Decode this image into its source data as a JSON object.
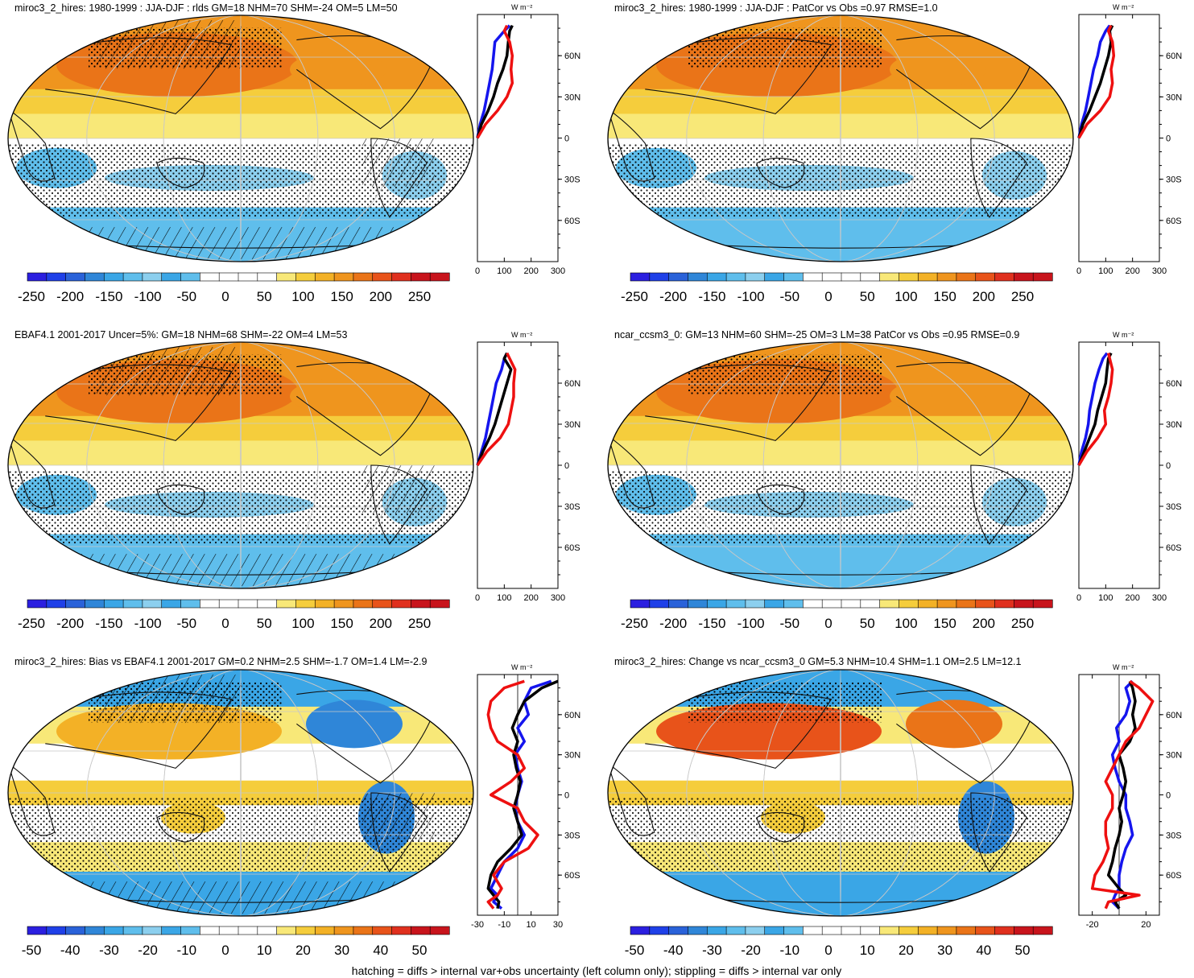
{
  "footer": "hatching = diffs > internal var+obs uncertainty (left column only); stippling = diffs > internal var only",
  "colors": {
    "seq_neg": [
      "#2b1fe0",
      "#1f40e8",
      "#2a62d9",
      "#2f86d8",
      "#3aa6e6",
      "#5fbeec",
      "#8ccfee"
    ],
    "seq_pos": [
      "#f8e878",
      "#f5cd3c",
      "#f3b126",
      "#ef951e",
      "#ea7418",
      "#e8531a",
      "#e0301e",
      "#c8141c"
    ],
    "white": "#ffffff",
    "profile_blue": "#1515ee",
    "profile_black": "#000000",
    "profile_red": "#ee1010"
  },
  "chart_data": [
    {
      "type": "heatmap",
      "panel": "top-left",
      "title": "miroc3_2_hires: 1980-1999 : JJA-DJF : rlds GM=18 NHM=70 SHM=-24 OM=5 LM=50",
      "colorbar_labels": [
        "-250",
        "-200",
        "-150",
        "-100",
        "-50",
        "0",
        "50",
        "100",
        "150",
        "200",
        "250"
      ],
      "profile": {
        "unit": "W m⁻²",
        "xticks": [
          "0",
          "100",
          "200",
          "300"
        ],
        "xlim": [
          0,
          300
        ],
        "lat_labels": [
          "60N",
          "30N",
          "0",
          "30S",
          "60S"
        ],
        "series": [
          {
            "name": "blue",
            "lat": [
              0,
              10,
              20,
              30,
              40,
              50,
              60,
              70,
              78,
              82
            ],
            "values": [
              0,
              10,
              25,
              35,
              45,
              55,
              60,
              65,
              100,
              120
            ]
          },
          {
            "name": "black",
            "lat": [
              0,
              10,
              20,
              30,
              40,
              50,
              60,
              70,
              78,
              82
            ],
            "values": [
              0,
              15,
              40,
              60,
              75,
              95,
              110,
              115,
              120,
              130
            ]
          },
          {
            "name": "red",
            "lat": [
              0,
              10,
              20,
              30,
              40,
              50,
              60,
              70,
              78,
              82
            ],
            "values": [
              0,
              30,
              75,
              110,
              130,
              125,
              130,
              120,
              100,
              110
            ]
          }
        ]
      }
    },
    {
      "type": "heatmap",
      "panel": "top-right",
      "title": "miroc3_2_hires: 1980-1999 : JJA-DJF : PatCor vs Obs =0.97 RMSE=1.0",
      "colorbar_labels": [
        "-250",
        "-200",
        "-150",
        "-100",
        "-50",
        "0",
        "50",
        "100",
        "150",
        "200",
        "250"
      ],
      "profile": {
        "unit": "W m⁻²",
        "xticks": [
          "0",
          "100",
          "200",
          "300"
        ],
        "xlim": [
          0,
          300
        ],
        "lat_labels": [
          "60N",
          "30N",
          "0",
          "30S",
          "60S"
        ],
        "series": [
          {
            "name": "blue",
            "lat": [
              0,
              10,
              20,
              30,
              40,
              50,
              60,
              70,
              78,
              82
            ],
            "values": [
              0,
              10,
              25,
              35,
              45,
              55,
              70,
              80,
              100,
              115
            ]
          },
          {
            "name": "black",
            "lat": [
              0,
              10,
              20,
              30,
              40,
              50,
              60,
              70,
              78,
              82
            ],
            "values": [
              0,
              15,
              40,
              60,
              80,
              95,
              110,
              120,
              115,
              125
            ]
          },
          {
            "name": "red",
            "lat": [
              0,
              10,
              20,
              30,
              40,
              50,
              60,
              70,
              78,
              82
            ],
            "values": [
              0,
              30,
              80,
              115,
              125,
              120,
              130,
              125,
              110,
              120
            ]
          }
        ]
      }
    },
    {
      "type": "heatmap",
      "panel": "middle-left",
      "title": "EBAF4.1 2001-2017 Uncer=5%: GM=18 NHM=68 SHM=-22 OM=4 LM=53",
      "colorbar_labels": [
        "-250",
        "-200",
        "-150",
        "-100",
        "-50",
        "0",
        "50",
        "100",
        "150",
        "200",
        "250"
      ],
      "profile": {
        "unit": "W m⁻²",
        "xticks": [
          "0",
          "100",
          "200",
          "300"
        ],
        "xlim": [
          0,
          300
        ],
        "lat_labels": [
          "60N",
          "30N",
          "0",
          "30S",
          "60S"
        ],
        "series": [
          {
            "name": "blue",
            "lat": [
              0,
              10,
              20,
              30,
              40,
              50,
              60,
              70,
              78,
              82
            ],
            "values": [
              0,
              15,
              30,
              40,
              50,
              60,
              70,
              90,
              100,
              110
            ]
          },
          {
            "name": "black",
            "lat": [
              0,
              10,
              20,
              30,
              40,
              50,
              60,
              70,
              78,
              82
            ],
            "values": [
              0,
              20,
              45,
              65,
              80,
              95,
              110,
              125,
              100,
              110
            ]
          },
          {
            "name": "red",
            "lat": [
              0,
              10,
              20,
              30,
              40,
              50,
              60,
              70,
              78,
              82
            ],
            "values": [
              0,
              35,
              85,
              115,
              125,
              135,
              135,
              140,
              120,
              110
            ]
          }
        ]
      }
    },
    {
      "type": "heatmap",
      "panel": "middle-right",
      "title": "ncar_ccsm3_0: GM=13 NHM=60 SHM=-25 OM=3 LM=38 PatCor vs Obs =0.95 RMSE=0.9",
      "colorbar_labels": [
        "-250",
        "-200",
        "-150",
        "-100",
        "-50",
        "0",
        "50",
        "100",
        "150",
        "200",
        "250"
      ],
      "profile": {
        "unit": "W m⁻²",
        "xticks": [
          "0",
          "100",
          "200",
          "300"
        ],
        "xlim": [
          0,
          300
        ],
        "lat_labels": [
          "60N",
          "30N",
          "0",
          "30S",
          "60S"
        ],
        "series": [
          {
            "name": "blue",
            "lat": [
              0,
              10,
              20,
              30,
              40,
              50,
              60,
              70,
              78,
              82
            ],
            "values": [
              0,
              10,
              25,
              35,
              40,
              50,
              60,
              75,
              90,
              105
            ]
          },
          {
            "name": "black",
            "lat": [
              0,
              10,
              20,
              30,
              40,
              50,
              60,
              70,
              78,
              82
            ],
            "values": [
              0,
              20,
              40,
              60,
              70,
              85,
              100,
              105,
              110,
              120
            ]
          },
          {
            "name": "red",
            "lat": [
              0,
              10,
              20,
              30,
              40,
              50,
              60,
              70,
              78,
              82
            ],
            "values": [
              0,
              30,
              70,
              100,
              95,
              110,
              120,
              125,
              115,
              110
            ]
          }
        ]
      }
    },
    {
      "type": "heatmap",
      "panel": "bottom-left",
      "title": "miroc3_2_hires: Bias vs EBAF4.1 2001-2017 GM=0.2 NHM=2.5 SHM=-1.7 OM=1.4 LM=-2.9",
      "colorbar_labels": [
        "-50",
        "-40",
        "-30",
        "-20",
        "-10",
        "0",
        "10",
        "20",
        "30",
        "40",
        "50"
      ],
      "profile": {
        "unit": "W m⁻²",
        "xticks": [
          "-30",
          "-10",
          "10",
          "30"
        ],
        "xlim": [
          -30,
          30
        ],
        "lat_labels": [
          "60N",
          "30N",
          "0",
          "30S",
          "60S"
        ],
        "series": [
          {
            "name": "blue",
            "lat": [
              -85,
              -80,
              -75,
              -70,
              -60,
              -50,
              -40,
              -30,
              -20,
              -10,
              0,
              10,
              20,
              30,
              40,
              50,
              60,
              70,
              80,
              85
            ],
            "values": [
              -12,
              -18,
              -15,
              -20,
              -15,
              -10,
              0,
              5,
              0,
              -2,
              0,
              3,
              0,
              -2,
              5,
              0,
              8,
              5,
              10,
              25
            ]
          },
          {
            "name": "black",
            "lat": [
              -85,
              -80,
              -75,
              -70,
              -60,
              -50,
              -40,
              -30,
              -20,
              -10,
              0,
              10,
              20,
              30,
              40,
              50,
              60,
              70,
              80,
              85
            ],
            "values": [
              -15,
              -14,
              -18,
              -22,
              -20,
              -15,
              -5,
              3,
              0,
              -3,
              0,
              2,
              -1,
              -3,
              0,
              -4,
              0,
              5,
              18,
              30
            ]
          },
          {
            "name": "red",
            "lat": [
              -85,
              -80,
              -75,
              -70,
              -60,
              -50,
              -40,
              -30,
              -20,
              -10,
              0,
              10,
              20,
              30,
              40,
              50,
              60,
              70,
              80,
              85
            ],
            "values": [
              -18,
              -22,
              -15,
              -12,
              -18,
              -10,
              8,
              15,
              5,
              0,
              -20,
              -5,
              5,
              0,
              -15,
              -20,
              -22,
              -20,
              -10,
              5
            ]
          }
        ]
      }
    },
    {
      "type": "heatmap",
      "panel": "bottom-right",
      "title": "miroc3_2_hires: Change vs ncar_ccsm3_0 GM=5.3 NHM=10.4 SHM=1.1 OM=2.5 LM=12.1",
      "colorbar_labels": [
        "-50",
        "-40",
        "-30",
        "-20",
        "-10",
        "0",
        "10",
        "20",
        "30",
        "40",
        "50"
      ],
      "profile": {
        "unit": "W m⁻²",
        "xticks": [
          "-20",
          "20"
        ],
        "xlim": [
          -30,
          30
        ],
        "lat_labels": [
          "60N",
          "30N",
          "0",
          "30S",
          "60S"
        ],
        "series": [
          {
            "name": "blue",
            "lat": [
              -85,
              -80,
              -75,
              -70,
              -60,
              -50,
              -40,
              -30,
              -20,
              -10,
              0,
              10,
              20,
              30,
              40,
              50,
              60,
              70,
              80,
              85
            ],
            "values": [
              0,
              -5,
              -3,
              0,
              0,
              2,
              5,
              10,
              8,
              5,
              5,
              0,
              -3,
              -5,
              0,
              -2,
              5,
              8,
              5,
              10
            ]
          },
          {
            "name": "black",
            "lat": [
              -85,
              -80,
              -75,
              -70,
              -60,
              -50,
              -40,
              -30,
              -20,
              -10,
              0,
              10,
              20,
              30,
              40,
              50,
              60,
              70,
              80,
              85
            ],
            "values": [
              0,
              -3,
              5,
              0,
              -8,
              -5,
              -3,
              0,
              2,
              0,
              3,
              5,
              3,
              0,
              8,
              12,
              10,
              12,
              10,
              8
            ]
          },
          {
            "name": "red",
            "lat": [
              -85,
              -80,
              -75,
              -70,
              -60,
              -50,
              -40,
              -30,
              -20,
              -10,
              0,
              10,
              20,
              30,
              40,
              50,
              60,
              70,
              80,
              85
            ],
            "values": [
              -10,
              -8,
              15,
              -20,
              -18,
              -12,
              -8,
              -10,
              -10,
              -5,
              -5,
              -10,
              -5,
              0,
              5,
              15,
              20,
              25,
              15,
              8
            ]
          }
        ]
      }
    }
  ]
}
